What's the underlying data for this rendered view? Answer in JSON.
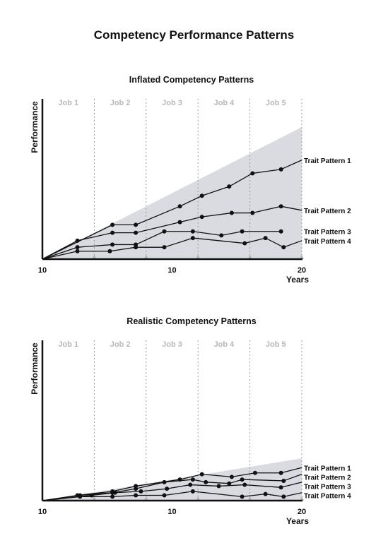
{
  "page": {
    "title": "Competency Performance Patterns"
  },
  "chart_data": [
    {
      "type": "line",
      "title": "Inflated Competency Patterns",
      "xlabel": "Years",
      "ylabel": "Performance",
      "x_tick_labels": [
        "10",
        "10",
        "20"
      ],
      "job_labels": [
        "Job 1",
        "Job 2",
        "Job 3",
        "Job 4",
        "Job 5"
      ],
      "job_boundaries": [
        4,
        8,
        12,
        16,
        20
      ],
      "xlim": [
        0,
        20
      ],
      "ylim": [
        0,
        100
      ],
      "envelope": {
        "x": [
          0,
          20
        ],
        "upper": [
          0,
          100
        ]
      },
      "series": [
        {
          "name": "Trait Pattern 1",
          "x": [
            0,
            5.4,
            7.2,
            10.6,
            12.3,
            14.4,
            16.2,
            18.4,
            20
          ],
          "y": [
            0,
            26,
            26,
            40,
            48,
            55,
            65,
            68,
            75
          ]
        },
        {
          "name": "Trait Pattern 2",
          "x": [
            0,
            2.7,
            5.4,
            7.2,
            10.6,
            12.3,
            14.6,
            16.2,
            18.4,
            20
          ],
          "y": [
            0,
            14,
            20,
            20,
            28,
            32,
            35,
            35,
            40,
            37
          ]
        },
        {
          "name": "Trait Pattern 3",
          "x": [
            0,
            2.7,
            5.4,
            7.2,
            9.4,
            11.6,
            13.8,
            15.4,
            18.4
          ],
          "y": [
            0,
            9,
            11,
            11,
            21,
            21,
            18,
            21,
            21
          ]
        },
        {
          "name": "Trait Pattern 4",
          "x": [
            0,
            2.7,
            5.2,
            7.2,
            9.4,
            11.6,
            15.6,
            17.2,
            18.6,
            20
          ],
          "y": [
            0,
            6,
            6,
            9,
            9,
            16,
            12,
            16,
            9,
            14
          ]
        }
      ]
    },
    {
      "type": "line",
      "title": "Realistic Competency Patterns",
      "xlabel": "Years",
      "ylabel": "Performance",
      "x_tick_labels": [
        "10",
        "10",
        "20"
      ],
      "job_labels": [
        "Job 1",
        "Job 2",
        "Job 3",
        "Job 4",
        "Job 5"
      ],
      "job_boundaries": [
        4,
        8,
        12,
        16,
        20
      ],
      "xlim": [
        0,
        20
      ],
      "ylim": [
        0,
        100
      ],
      "envelope": {
        "x": [
          0,
          20
        ],
        "upper": [
          0,
          32
        ]
      },
      "series": [
        {
          "name": "Trait Pattern 1",
          "x": [
            0,
            2.7,
            5.4,
            7.2,
            10.6,
            12.3,
            14.6,
            16.4,
            18.4,
            20
          ],
          "y": [
            0,
            4,
            7,
            11,
            16,
            20,
            18,
            21,
            21,
            25
          ]
        },
        {
          "name": "Trait Pattern 2",
          "x": [
            0,
            2.9,
            5.4,
            7.2,
            9.4,
            11.6,
            12.6,
            14.4,
            15.4,
            18.6,
            20
          ],
          "y": [
            0,
            4,
            6,
            9,
            14,
            16,
            14,
            13,
            16,
            15,
            20
          ]
        },
        {
          "name": "Trait Pattern 3",
          "x": [
            0,
            3.8,
            5.6,
            7.6,
            9.6,
            11.4,
            13.6,
            15.6,
            18.4,
            20
          ],
          "y": [
            0,
            4,
            6,
            7,
            9,
            12,
            11,
            12,
            10,
            14
          ]
        },
        {
          "name": "Trait Pattern 4",
          "x": [
            0,
            2.9,
            5.4,
            7.2,
            9.4,
            11.6,
            15.4,
            17.2,
            18.6,
            20
          ],
          "y": [
            0,
            3,
            3,
            4,
            4,
            7,
            3,
            5,
            3,
            6
          ]
        }
      ]
    }
  ],
  "colors": {
    "envelope": "#d9dbe0",
    "line": "#111111",
    "job_label": "#b8b8b8",
    "grid": "#9a9a9a"
  }
}
